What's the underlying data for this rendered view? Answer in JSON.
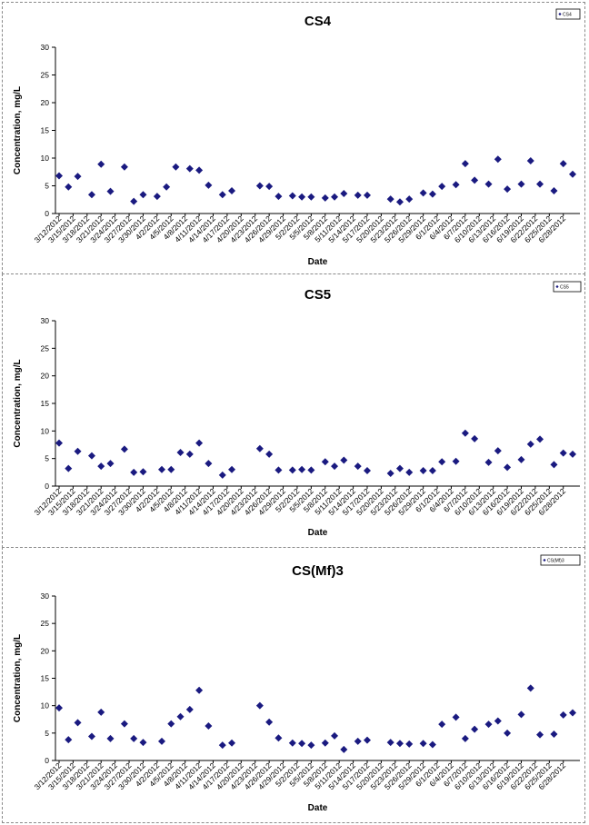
{
  "chart_data": [
    {
      "type": "scatter",
      "title": "CS4",
      "xlabel": "Date",
      "ylabel": "Concentration, mg/L",
      "ylim": [
        0,
        30
      ],
      "yticks": [
        0,
        5,
        10,
        15,
        20,
        25,
        30
      ],
      "grid": false,
      "legend_position": "top-right",
      "marker_color": "#1a1a80",
      "x_tick_labels": [
        "3/12/2012",
        "3/15/2012",
        "3/18/2012",
        "3/21/2012",
        "3/24/2012",
        "3/27/2012",
        "3/30/2012",
        "4/2/2012",
        "4/5/2012",
        "4/8/2012",
        "4/11/2012",
        "4/14/2012",
        "4/17/2012",
        "4/20/2012",
        "4/23/2012",
        "4/26/2012",
        "4/29/2012",
        "5/2/2012",
        "5/5/2012",
        "5/8/2012",
        "5/11/2012",
        "5/14/2012",
        "5/17/2012",
        "5/20/2012",
        "5/23/2012",
        "5/26/2012",
        "5/29/2012",
        "6/1/2012",
        "6/4/2012",
        "6/7/2012",
        "6/10/2012",
        "6/13/2012",
        "6/16/2012",
        "6/19/2012",
        "6/22/2012",
        "6/25/2012",
        "6/28/2012"
      ],
      "series": [
        {
          "name": "CS4",
          "points": [
            [
              "3/12/2012",
              6.8
            ],
            [
              "3/14/2012",
              4.8
            ],
            [
              "3/16/2012",
              6.7
            ],
            [
              "3/19/2012",
              3.4
            ],
            [
              "3/21/2012",
              8.9
            ],
            [
              "3/23/2012",
              4.0
            ],
            [
              "3/26/2012",
              8.4
            ],
            [
              "3/28/2012",
              2.2
            ],
            [
              "3/30/2012",
              3.4
            ],
            [
              "4/2/2012",
              3.1
            ],
            [
              "4/4/2012",
              4.8
            ],
            [
              "4/6/2012",
              8.4
            ],
            [
              "4/9/2012",
              8.1
            ],
            [
              "4/11/2012",
              7.8
            ],
            [
              "4/13/2012",
              5.1
            ],
            [
              "4/16/2012",
              3.4
            ],
            [
              "4/18/2012",
              4.1
            ],
            [
              "4/24/2012",
              5.0
            ],
            [
              "4/26/2012",
              4.9
            ],
            [
              "4/28/2012",
              3.1
            ],
            [
              "5/1/2012",
              3.2
            ],
            [
              "5/3/2012",
              3.0
            ],
            [
              "5/5/2012",
              3.0
            ],
            [
              "5/8/2012",
              2.8
            ],
            [
              "5/10/2012",
              3.0
            ],
            [
              "5/12/2012",
              3.6
            ],
            [
              "5/15/2012",
              3.3
            ],
            [
              "5/17/2012",
              3.3
            ],
            [
              "5/22/2012",
              2.6
            ],
            [
              "5/24/2012",
              2.1
            ],
            [
              "5/26/2012",
              2.6
            ],
            [
              "5/29/2012",
              3.7
            ],
            [
              "5/31/2012",
              3.5
            ],
            [
              "6/2/2012",
              4.9
            ],
            [
              "6/5/2012",
              5.2
            ],
            [
              "6/7/2012",
              9.0
            ],
            [
              "6/9/2012",
              6.0
            ],
            [
              "6/12/2012",
              5.3
            ],
            [
              "6/14/2012",
              9.8
            ],
            [
              "6/16/2012",
              4.4
            ],
            [
              "6/19/2012",
              5.3
            ],
            [
              "6/21/2012",
              9.5
            ],
            [
              "6/23/2012",
              5.3
            ],
            [
              "6/26/2012",
              4.1
            ],
            [
              "6/28/2012",
              9.0
            ],
            [
              "6/30/2012",
              7.1
            ]
          ]
        }
      ]
    },
    {
      "type": "scatter",
      "title": "CS5",
      "xlabel": "Date",
      "ylabel": "Concentration, mg/L",
      "ylim": [
        0,
        30
      ],
      "yticks": [
        0,
        5,
        10,
        15,
        20,
        25,
        30
      ],
      "grid": false,
      "legend_position": "top-right",
      "marker_color": "#1a1a80",
      "x_tick_labels": [
        "3/12/2012",
        "3/15/2012",
        "3/18/2012",
        "3/21/2012",
        "3/24/2012",
        "3/27/2012",
        "3/30/2012",
        "4/2/2012",
        "4/5/2012",
        "4/8/2012",
        "4/11/2012",
        "4/14/2012",
        "4/17/2012",
        "4/20/2012",
        "4/23/2012",
        "4/26/2012",
        "4/29/2012",
        "5/2/2012",
        "5/5/2012",
        "5/8/2012",
        "5/11/2012",
        "5/14/2012",
        "5/17/2012",
        "5/20/2012",
        "5/23/2012",
        "5/26/2012",
        "5/29/2012",
        "6/1/2012",
        "6/4/2012",
        "6/7/2012",
        "6/10/2012",
        "6/13/2012",
        "6/16/2012",
        "6/19/2012",
        "6/22/2012",
        "6/25/2012",
        "6/28/2012"
      ],
      "series": [
        {
          "name": "CS5",
          "points": [
            [
              "3/12/2012",
              7.8
            ],
            [
              "3/14/2012",
              3.2
            ],
            [
              "3/16/2012",
              6.3
            ],
            [
              "3/19/2012",
              5.5
            ],
            [
              "3/21/2012",
              3.6
            ],
            [
              "3/23/2012",
              4.1
            ],
            [
              "3/26/2012",
              6.7
            ],
            [
              "3/28/2012",
              2.5
            ],
            [
              "3/30/2012",
              2.6
            ],
            [
              "4/3/2012",
              3.0
            ],
            [
              "4/5/2012",
              3.0
            ],
            [
              "4/7/2012",
              6.1
            ],
            [
              "4/9/2012",
              5.8
            ],
            [
              "4/11/2012",
              7.8
            ],
            [
              "4/13/2012",
              4.1
            ],
            [
              "4/16/2012",
              2.0
            ],
            [
              "4/18/2012",
              3.0
            ],
            [
              "4/24/2012",
              6.8
            ],
            [
              "4/26/2012",
              5.8
            ],
            [
              "4/28/2012",
              2.9
            ],
            [
              "5/1/2012",
              2.9
            ],
            [
              "5/3/2012",
              3.0
            ],
            [
              "5/5/2012",
              2.9
            ],
            [
              "5/8/2012",
              4.4
            ],
            [
              "5/10/2012",
              3.6
            ],
            [
              "5/12/2012",
              4.7
            ],
            [
              "5/15/2012",
              3.6
            ],
            [
              "5/17/2012",
              2.8
            ],
            [
              "5/22/2012",
              2.3
            ],
            [
              "5/24/2012",
              3.2
            ],
            [
              "5/26/2012",
              2.5
            ],
            [
              "5/29/2012",
              2.8
            ],
            [
              "5/31/2012",
              2.8
            ],
            [
              "6/2/2012",
              4.4
            ],
            [
              "6/5/2012",
              4.5
            ],
            [
              "6/7/2012",
              9.6
            ],
            [
              "6/9/2012",
              8.6
            ],
            [
              "6/12/2012",
              4.3
            ],
            [
              "6/14/2012",
              6.4
            ],
            [
              "6/16/2012",
              3.4
            ],
            [
              "6/19/2012",
              4.8
            ],
            [
              "6/21/2012",
              7.6
            ],
            [
              "6/23/2012",
              8.5
            ],
            [
              "6/26/2012",
              3.9
            ],
            [
              "6/28/2012",
              6.0
            ],
            [
              "6/30/2012",
              5.8
            ]
          ]
        }
      ]
    },
    {
      "type": "scatter",
      "title": "CS(Mf)3",
      "xlabel": "Date",
      "ylabel": "Concentration, mg/L",
      "ylim": [
        0,
        30
      ],
      "yticks": [
        0,
        5,
        10,
        15,
        20,
        25,
        30
      ],
      "grid": false,
      "legend_position": "top-right",
      "marker_color": "#1a1a80",
      "x_tick_labels": [
        "3/12/2012",
        "3/15/2012",
        "3/18/2012",
        "3/21/2012",
        "3/24/2012",
        "3/27/2012",
        "3/30/2012",
        "4/2/2012",
        "4/5/2012",
        "4/8/2012",
        "4/11/2012",
        "4/14/2012",
        "4/17/2012",
        "4/20/2012",
        "4/23/2012",
        "4/26/2012",
        "4/29/2012",
        "5/2/2012",
        "5/5/2012",
        "5/8/2012",
        "5/11/2012",
        "5/14/2012",
        "5/17/2012",
        "5/20/2012",
        "5/23/2012",
        "5/26/2012",
        "5/29/2012",
        "6/1/2012",
        "6/4/2012",
        "6/7/2012",
        "6/10/2012",
        "6/13/2012",
        "6/16/2012",
        "6/19/2012",
        "6/22/2012",
        "6/25/2012",
        "6/28/2012"
      ],
      "series": [
        {
          "name": "CS(Mf)3",
          "points": [
            [
              "3/12/2012",
              9.6
            ],
            [
              "3/14/2012",
              3.8
            ],
            [
              "3/16/2012",
              6.9
            ],
            [
              "3/19/2012",
              4.4
            ],
            [
              "3/21/2012",
              8.8
            ],
            [
              "3/23/2012",
              4.0
            ],
            [
              "3/26/2012",
              6.7
            ],
            [
              "3/28/2012",
              4.0
            ],
            [
              "3/30/2012",
              3.3
            ],
            [
              "4/3/2012",
              3.5
            ],
            [
              "4/5/2012",
              6.7
            ],
            [
              "4/7/2012",
              8.0
            ],
            [
              "4/9/2012",
              9.3
            ],
            [
              "4/11/2012",
              12.8
            ],
            [
              "4/13/2012",
              6.3
            ],
            [
              "4/16/2012",
              2.8
            ],
            [
              "4/18/2012",
              3.2
            ],
            [
              "4/24/2012",
              10.0
            ],
            [
              "4/26/2012",
              7.0
            ],
            [
              "4/28/2012",
              4.1
            ],
            [
              "5/1/2012",
              3.2
            ],
            [
              "5/3/2012",
              3.1
            ],
            [
              "5/5/2012",
              2.8
            ],
            [
              "5/8/2012",
              3.2
            ],
            [
              "5/10/2012",
              4.5
            ],
            [
              "5/12/2012",
              2.0
            ],
            [
              "5/15/2012",
              3.5
            ],
            [
              "5/17/2012",
              3.7
            ],
            [
              "5/22/2012",
              3.3
            ],
            [
              "5/24/2012",
              3.1
            ],
            [
              "5/26/2012",
              3.0
            ],
            [
              "5/29/2012",
              3.1
            ],
            [
              "5/31/2012",
              2.9
            ],
            [
              "6/2/2012",
              6.6
            ],
            [
              "6/5/2012",
              7.9
            ],
            [
              "6/7/2012",
              4.0
            ],
            [
              "6/9/2012",
              5.7
            ],
            [
              "6/12/2012",
              6.6
            ],
            [
              "6/14/2012",
              7.2
            ],
            [
              "6/16/2012",
              5.0
            ],
            [
              "6/19/2012",
              8.4
            ],
            [
              "6/21/2012",
              13.2
            ],
            [
              "6/23/2012",
              4.7
            ],
            [
              "6/26/2012",
              4.8
            ],
            [
              "6/28/2012",
              8.3
            ],
            [
              "6/30/2012",
              8.7
            ]
          ]
        }
      ]
    }
  ]
}
